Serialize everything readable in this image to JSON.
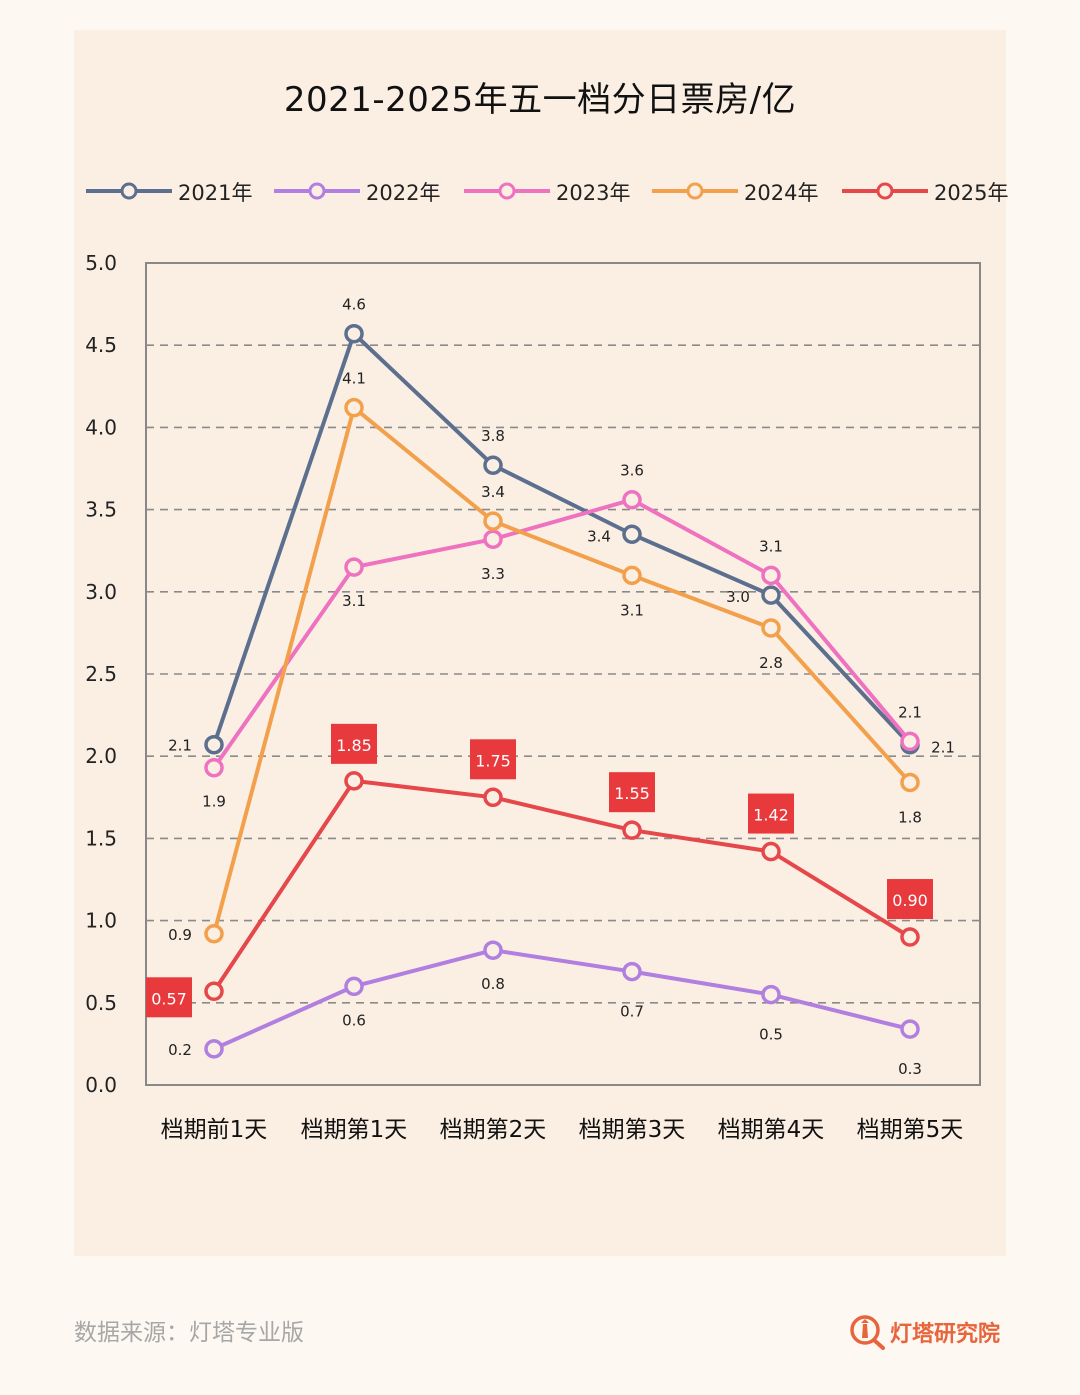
{
  "title": "2021-2025年五一档分日票房/亿",
  "source_text": "数据来源：灯塔专业版",
  "brand": {
    "name": "灯塔研究院",
    "icon": "lighthouse-search-icon"
  },
  "chart_data": {
    "type": "line",
    "title": "2021-2025年五一档分日票房/亿",
    "categories": [
      "档期前1天",
      "档期第1天",
      "档期第2天",
      "档期第3天",
      "档期第4天",
      "档期第5天"
    ],
    "ylim": [
      0,
      5
    ],
    "yticks": [
      "0.0",
      "0.5",
      "1.0",
      "1.5",
      "2.0",
      "2.5",
      "3.0",
      "3.5",
      "4.0",
      "4.5",
      "5.0"
    ],
    "grid": "horizontal-dashed",
    "legend_position": "top",
    "series": [
      {
        "name": "2021年",
        "color": "#5c6f8e",
        "values": [
          2.07,
          4.57,
          3.77,
          3.35,
          2.98,
          2.07
        ],
        "labels": [
          "2.1",
          "4.6",
          "3.8",
          "3.4",
          "3.0",
          "2.1"
        ]
      },
      {
        "name": "2022年",
        "color": "#b07fe0",
        "values": [
          0.22,
          0.6,
          0.82,
          0.69,
          0.55,
          0.34
        ],
        "labels": [
          "0.2",
          "0.6",
          "0.8",
          "0.7",
          "0.5",
          "0.3"
        ]
      },
      {
        "name": "2023年",
        "color": "#ee72c0",
        "values": [
          1.93,
          3.15,
          3.32,
          3.56,
          3.1,
          2.09
        ],
        "labels": [
          "1.9",
          "3.1",
          "3.3",
          "3.6",
          "3.1",
          "2.1"
        ]
      },
      {
        "name": "2024年",
        "color": "#f2a04c",
        "values": [
          0.92,
          4.12,
          3.43,
          3.1,
          2.78,
          1.84
        ],
        "labels": [
          "0.9",
          "4.1",
          "3.4",
          "3.1",
          "2.8",
          "1.8"
        ]
      },
      {
        "name": "2025年",
        "color": "#e5474a",
        "values": [
          0.57,
          1.85,
          1.75,
          1.55,
          1.42,
          0.9
        ],
        "labels": [
          "0.57",
          "1.85",
          "1.75",
          "1.55",
          "1.42",
          "0.90"
        ]
      }
    ]
  }
}
